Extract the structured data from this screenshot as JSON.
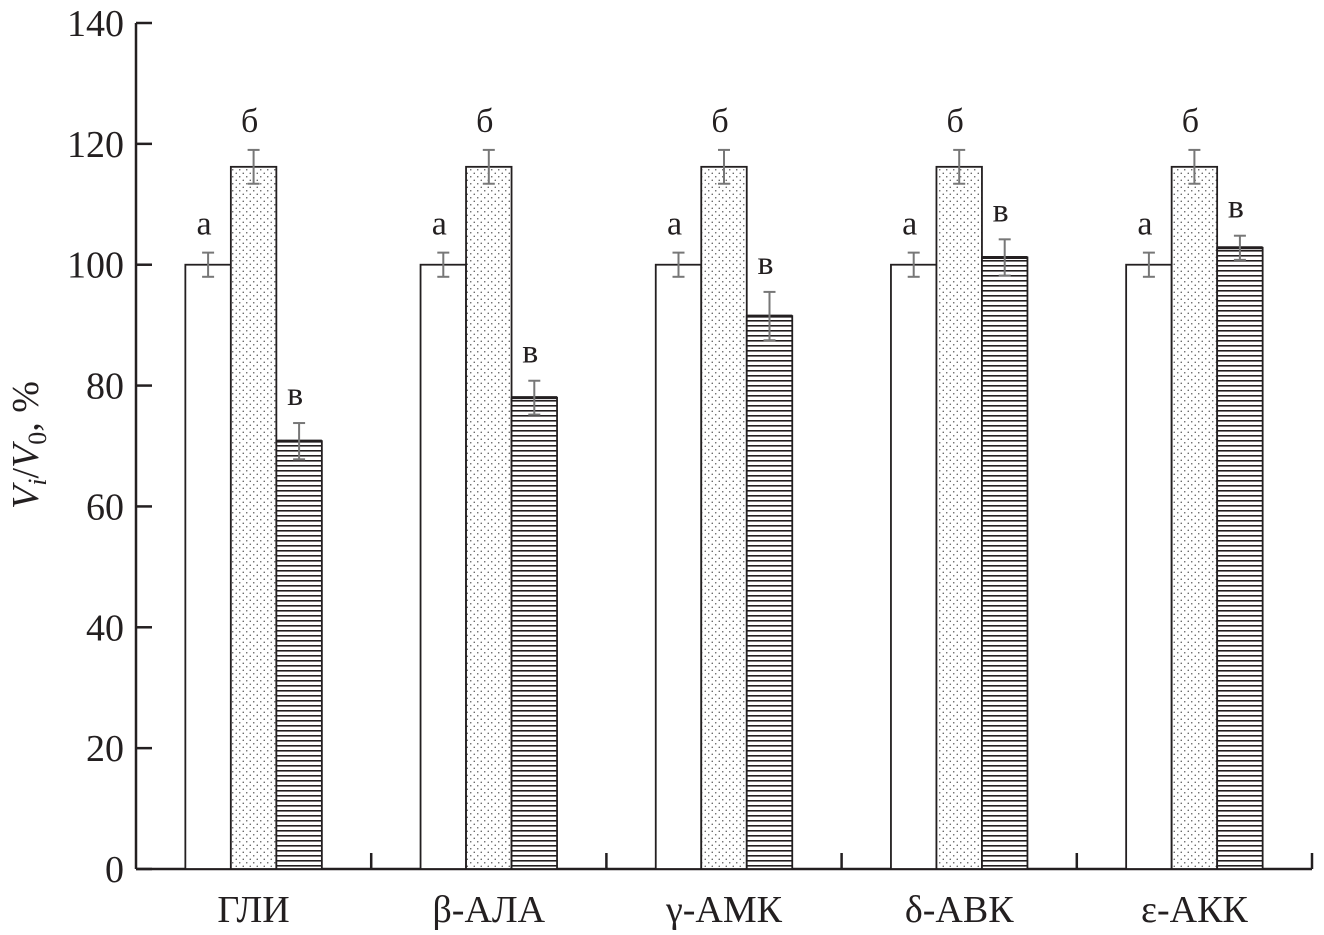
{
  "chart_data": {
    "type": "bar",
    "categories": [
      "ГЛИ",
      "β-АЛА",
      "γ-АМК",
      "δ-АВК",
      "ε-АКК"
    ],
    "series": [
      {
        "pattern": "white",
        "values": [
          100,
          100,
          100,
          100,
          100
        ],
        "errors": [
          2,
          2,
          2,
          2,
          2
        ],
        "labels": [
          "a",
          "a",
          "a",
          "a",
          "a"
        ]
      },
      {
        "pattern": "dotted",
        "values": [
          116.2,
          116.2,
          116.2,
          116.2,
          116.2
        ],
        "errors": [
          2.8,
          2.8,
          2.8,
          2.8,
          2.8
        ],
        "labels": [
          "б",
          "б",
          "б",
          "б",
          "б"
        ]
      },
      {
        "pattern": "horizontal-lines",
        "values": [
          70.8,
          78,
          91.5,
          101.2,
          102.8
        ],
        "errors": [
          3,
          2.8,
          4,
          3,
          2
        ],
        "labels": [
          "в",
          "в",
          "в",
          "в",
          "в"
        ]
      }
    ],
    "ylabel": "Vi/V0, %",
    "ylabel_parts": {
      "v1": "V",
      "i": "i",
      "slash": "/",
      "v2": "V",
      "zero": "0",
      "unit": ", %"
    },
    "ylim": [
      0,
      140
    ],
    "yticks": [
      0,
      20,
      40,
      60,
      80,
      100,
      120,
      140
    ],
    "grid": false,
    "legend": "none",
    "colors": {
      "ink": "#231f20",
      "error_bar": "#777777",
      "fill": "#ffffff"
    }
  }
}
